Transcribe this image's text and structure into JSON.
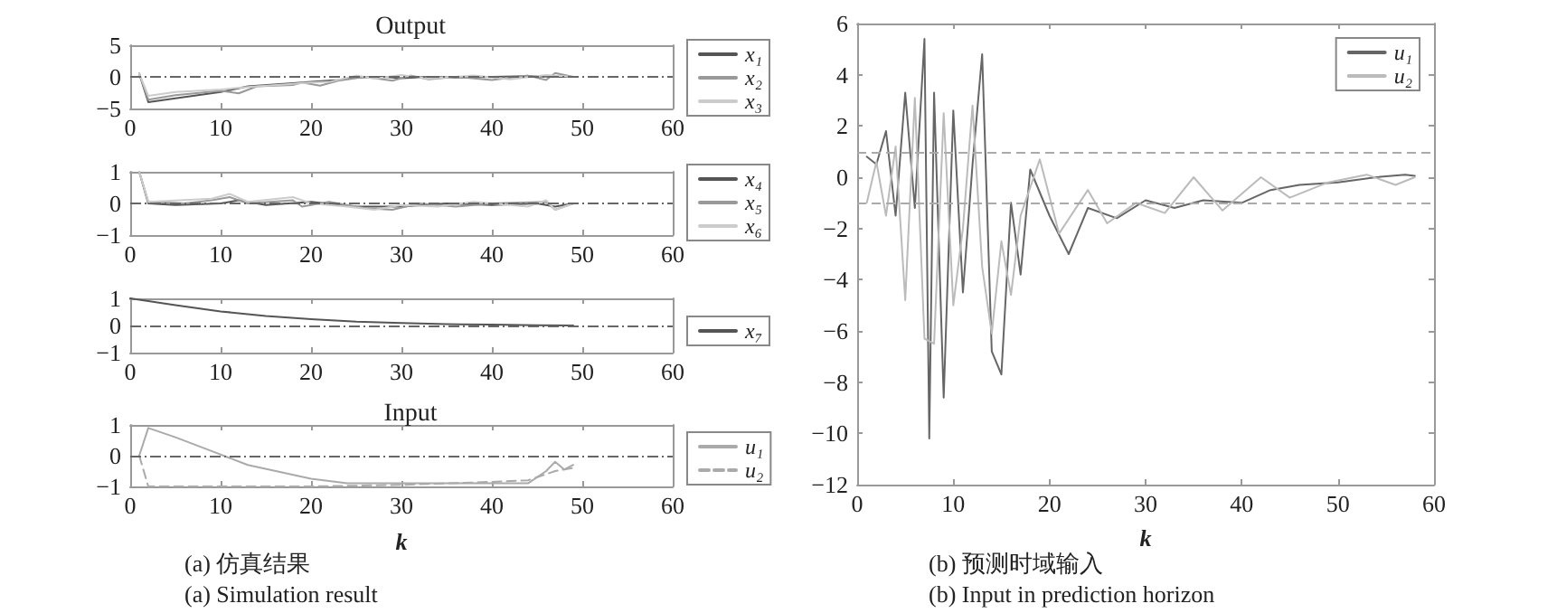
{
  "chart_data": [
    {
      "type": "line",
      "title": "Output",
      "xlim": [
        0,
        60
      ],
      "xticks": [
        0,
        10,
        20,
        30,
        40,
        50,
        60
      ],
      "ylim": [
        -5,
        5
      ],
      "yticks": [
        -5,
        0,
        5
      ],
      "grid": false,
      "legend": "right",
      "marker": "none",
      "ref_lines": [
        {
          "axis": "y",
          "value": 0,
          "color": "#666666",
          "line_style": "dashed"
        }
      ],
      "series": [
        {
          "name": "x₁",
          "color": "#555555",
          "x": [
            1,
            2,
            5,
            10,
            13,
            18,
            20,
            23,
            25,
            28,
            30,
            33,
            36,
            40,
            44,
            47,
            49
          ],
          "values": [
            0.5,
            -4,
            -3.4,
            -2.4,
            -1.5,
            -1.0,
            -0.8,
            -0.5,
            -0.1,
            0,
            -0.2,
            0,
            -0.1,
            0,
            0.1,
            0,
            0
          ]
        },
        {
          "name": "x₂",
          "color": "#999999",
          "x": [
            1,
            2,
            5,
            10,
            12,
            14,
            18,
            19,
            21,
            23,
            26,
            29,
            31,
            33,
            36,
            40,
            44,
            46,
            47,
            49
          ],
          "values": [
            0.5,
            -3.6,
            -2.9,
            -2.2,
            -2.6,
            -1.5,
            -1.3,
            -0.9,
            -1.4,
            -0.6,
            0,
            -0.6,
            0.2,
            -0.4,
            0,
            -0.5,
            0.2,
            -0.5,
            0.6,
            0
          ]
        },
        {
          "name": "x₃",
          "color": "#cccccc",
          "x": [
            1,
            2,
            5,
            10,
            13,
            17,
            20,
            22,
            25,
            27,
            30,
            33,
            38,
            42,
            46,
            49
          ],
          "values": [
            0.5,
            -3,
            -2.4,
            -2.0,
            -1.6,
            -1.2,
            -0.9,
            -0.8,
            0.2,
            -0.3,
            0.3,
            -0.3,
            0.2,
            -0.4,
            0.3,
            0
          ]
        }
      ]
    },
    {
      "type": "line",
      "xlim": [
        0,
        60
      ],
      "xticks": [
        0,
        10,
        20,
        30,
        40,
        50,
        60
      ],
      "ylim": [
        -1,
        1
      ],
      "yticks": [
        -1,
        0,
        1
      ],
      "grid": false,
      "legend": "right",
      "marker": "none",
      "ref_lines": [
        {
          "axis": "y",
          "value": 0,
          "color": "#666666",
          "line_style": "dashed"
        }
      ],
      "series": [
        {
          "name": "x₄",
          "color": "#555555",
          "x": [
            1,
            2,
            5,
            10,
            12,
            15,
            20,
            25,
            30,
            35,
            40,
            45,
            47,
            49
          ],
          "values": [
            1,
            0,
            -0.05,
            0,
            0.1,
            -0.05,
            0.05,
            -0.1,
            -0.1,
            0,
            -0.05,
            0,
            -0.1,
            0
          ]
        },
        {
          "name": "x₅",
          "color": "#999999",
          "x": [
            1,
            2,
            6,
            9,
            11,
            13,
            18,
            19,
            22,
            26,
            29,
            32,
            36,
            40,
            46,
            47,
            49
          ],
          "values": [
            1,
            0.05,
            0,
            0.1,
            0.2,
            0,
            0.1,
            -0.1,
            0.05,
            -0.15,
            -0.2,
            0,
            -0.1,
            0,
            0.05,
            -0.2,
            0
          ]
        },
        {
          "name": "x₆",
          "color": "#cccccc",
          "x": [
            1,
            2,
            9,
            11,
            13,
            18,
            20,
            24,
            27,
            30,
            34,
            38,
            44,
            46,
            47,
            49
          ],
          "values": [
            1,
            0.05,
            0.15,
            0.3,
            0.05,
            0.2,
            0,
            -0.1,
            -0.2,
            -0.05,
            -0.1,
            0.05,
            -0.1,
            0.1,
            -0.2,
            0
          ]
        }
      ]
    },
    {
      "type": "line",
      "xlim": [
        0,
        60
      ],
      "xticks": [
        0,
        10,
        20,
        30,
        40,
        50,
        60
      ],
      "ylim": [
        -1,
        1
      ],
      "yticks": [
        -1,
        0,
        1
      ],
      "grid": false,
      "legend": "right",
      "marker": "none",
      "ref_lines": [
        {
          "axis": "y",
          "value": 0,
          "color": "#666666",
          "line_style": "dashed"
        }
      ],
      "series": [
        {
          "name": "x₇",
          "color": "#555555",
          "x": [
            0,
            5,
            10,
            15,
            20,
            25,
            30,
            35,
            40,
            45,
            49
          ],
          "values": [
            1,
            0.75,
            0.52,
            0.35,
            0.23,
            0.14,
            0.09,
            0.05,
            0.03,
            0.01,
            0
          ]
        }
      ]
    },
    {
      "type": "line",
      "title": "Input",
      "xlabel": "k",
      "xlim": [
        0,
        60
      ],
      "xticks": [
        0,
        10,
        20,
        30,
        40,
        50,
        60
      ],
      "ylim": [
        -1,
        1
      ],
      "yticks": [
        -1,
        0,
        1
      ],
      "grid": false,
      "legend": "right",
      "marker": "none",
      "annotations": [
        "(a) 仿真结果",
        "(a) Simulation result"
      ],
      "ref_lines": [
        {
          "axis": "y",
          "value": 0,
          "color": "#666666",
          "line_style": "dashed"
        }
      ],
      "series": [
        {
          "name": "u₁",
          "color": "#aaaaaa",
          "line_style": "solid",
          "x": [
            1,
            2,
            5,
            9,
            13,
            20,
            24,
            30,
            40,
            44,
            46,
            47,
            48,
            49
          ],
          "values": [
            0,
            0.9,
            0.6,
            0.15,
            -0.3,
            -0.75,
            -0.9,
            -0.9,
            -0.9,
            -0.9,
            -0.5,
            -0.2,
            -0.45,
            -0.3
          ]
        },
        {
          "name": "u₂",
          "color": "#aaaaaa",
          "line_style": "dashed",
          "x": [
            1,
            2,
            10,
            20,
            30,
            40,
            44,
            47,
            49
          ],
          "values": [
            0,
            -1,
            -1,
            -1,
            -0.95,
            -0.85,
            -0.8,
            -0.5,
            -0.4
          ]
        }
      ]
    },
    {
      "type": "line",
      "xlabel": "k",
      "xlim": [
        0,
        60
      ],
      "xticks": [
        0,
        10,
        20,
        30,
        40,
        50,
        60
      ],
      "ylim": [
        -12,
        6
      ],
      "yticks": [
        -12,
        -10,
        -8,
        -6,
        -4,
        -2,
        0,
        2,
        4,
        6
      ],
      "grid": false,
      "legend": "top right",
      "marker": "none",
      "annotations": [
        "(b) 预测时域输入",
        "(b) Input in prediction horizon"
      ],
      "ref_lines": [
        {
          "axis": "y",
          "value": 1,
          "color": "#aaaaaa",
          "line_style": "dashed"
        },
        {
          "axis": "y",
          "value": -1,
          "color": "#aaaaaa",
          "line_style": "dashed"
        }
      ],
      "series": [
        {
          "name": "u₁",
          "color": "#666666",
          "x": [
            1,
            2,
            3,
            4,
            5,
            6,
            7,
            7.5,
            8,
            9,
            10,
            11,
            12,
            13,
            14,
            15,
            16,
            17,
            18,
            20,
            22,
            24,
            27,
            30,
            33,
            36,
            40,
            43,
            46,
            50,
            54,
            57,
            58
          ],
          "values": [
            0.8,
            0.5,
            1.8,
            -1.5,
            3.3,
            -1.2,
            5.4,
            -10.2,
            3.3,
            -8.6,
            2.6,
            -4.5,
            0.5,
            4.8,
            -6.8,
            -7.7,
            -1.0,
            -3.8,
            0.3,
            -1.5,
            -3.0,
            -1.2,
            -1.6,
            -0.9,
            -1.2,
            -0.9,
            -1.0,
            -0.5,
            -0.3,
            -0.2,
            0,
            0.1,
            0.05
          ]
        },
        {
          "name": "u₂",
          "color": "#bbbbbb",
          "x": [
            1,
            2,
            3,
            4,
            5,
            6,
            7,
            8,
            9,
            10,
            11,
            12,
            13,
            14,
            15,
            16,
            17,
            19,
            21,
            24,
            26,
            29,
            32,
            35,
            38,
            42,
            45,
            49,
            53,
            56,
            58
          ],
          "values": [
            -1,
            0.6,
            -1.5,
            1.2,
            -4.8,
            3.1,
            -6.3,
            -6.5,
            2.5,
            -5,
            -2,
            2.8,
            -3.5,
            -6.1,
            -2.5,
            -4.6,
            -1.5,
            0.7,
            -2.2,
            -0.5,
            -1.8,
            -1,
            -1.4,
            0,
            -1.3,
            0,
            -0.8,
            -0.2,
            0.1,
            -0.3,
            0
          ]
        }
      ]
    }
  ]
}
